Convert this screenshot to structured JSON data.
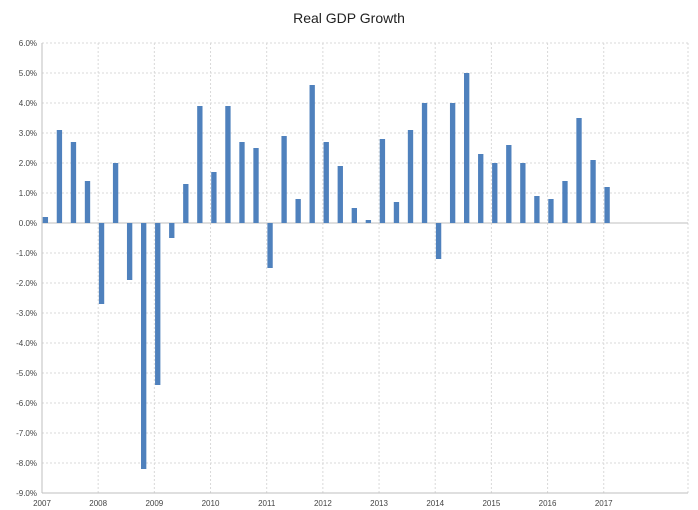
{
  "chart_data": {
    "type": "bar",
    "title": "Real GDP Growth",
    "xlabel": "",
    "ylabel": "",
    "ylim": [
      -9,
      6
    ],
    "y_ticks": [
      {
        "value": 6,
        "label": "6.0%"
      },
      {
        "value": 5,
        "label": "5.0%"
      },
      {
        "value": 4,
        "label": "4.0%"
      },
      {
        "value": 3,
        "label": "3.0%"
      },
      {
        "value": 2,
        "label": "2.0%"
      },
      {
        "value": 1,
        "label": "1.0%"
      },
      {
        "value": 0,
        "label": "0.0%"
      },
      {
        "value": -1,
        "label": "-1.0%"
      },
      {
        "value": -2,
        "label": "-2.0%"
      },
      {
        "value": -3,
        "label": "-3.0%"
      },
      {
        "value": -4,
        "label": "-4.0%"
      },
      {
        "value": -5,
        "label": "-5.0%"
      },
      {
        "value": -6,
        "label": "-6.0%"
      },
      {
        "value": -7,
        "label": "-7.0%"
      },
      {
        "value": -8,
        "label": "-8.0%"
      },
      {
        "value": -9,
        "label": "-9.0%"
      }
    ],
    "x_ticks": [
      "2007",
      "2008",
      "2009",
      "2010",
      "2011",
      "2012",
      "2013",
      "2014",
      "2015",
      "2016",
      "2017"
    ],
    "categories": [
      "2007 Q1",
      "2007 Q2",
      "2007 Q3",
      "2007 Q4",
      "2008 Q1",
      "2008 Q2",
      "2008 Q3",
      "2008 Q4",
      "2009 Q1",
      "2009 Q2",
      "2009 Q3",
      "2009 Q4",
      "2010 Q1",
      "2010 Q2",
      "2010 Q3",
      "2010 Q4",
      "2011 Q1",
      "2011 Q2",
      "2011 Q3",
      "2011 Q4",
      "2012 Q1",
      "2012 Q2",
      "2012 Q3",
      "2012 Q4",
      "2013 Q1",
      "2013 Q2",
      "2013 Q3",
      "2013 Q4",
      "2014 Q1",
      "2014 Q2",
      "2014 Q3",
      "2014 Q4",
      "2015 Q1",
      "2015 Q2",
      "2015 Q3",
      "2015 Q4",
      "2016 Q1",
      "2016 Q2",
      "2016 Q3",
      "2016 Q4",
      "2017 Q1"
    ],
    "values": [
      0.2,
      3.1,
      2.7,
      1.4,
      -2.7,
      2.0,
      -1.9,
      -8.2,
      -5.4,
      -0.5,
      1.3,
      3.9,
      1.7,
      3.9,
      2.7,
      2.5,
      -1.5,
      2.9,
      0.8,
      4.6,
      2.7,
      1.9,
      0.5,
      0.1,
      2.8,
      0.7,
      3.1,
      4.0,
      -1.2,
      4.0,
      5.0,
      2.3,
      2.0,
      2.6,
      2.0,
      0.9,
      0.8,
      1.4,
      3.5,
      2.1,
      1.2
    ],
    "grid": true,
    "legend": "none",
    "bar_color": "#4f81bd"
  }
}
